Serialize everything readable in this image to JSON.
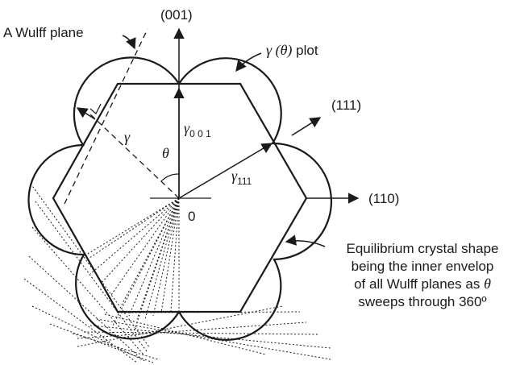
{
  "labels": {
    "wulff_plane": "A  Wulff plane",
    "gamma_plot_symbol": "γ (θ)",
    "gamma_plot_word": " plot",
    "direction_001": "(001)",
    "direction_111": "(111)",
    "direction_110": "(110)",
    "gamma": "γ",
    "theta": "θ",
    "gamma_symbol": "γ",
    "gamma_001_sub": "0 0 1",
    "gamma_111_sub": "111",
    "origin": "0",
    "caption_line1": "Equilibrium crystal shape",
    "caption_line2": "being the inner envelop",
    "caption_line3_pre": "of all Wulff planes as ",
    "caption_line3_theta": "θ",
    "caption_line4": "sweeps through 360º"
  }
}
